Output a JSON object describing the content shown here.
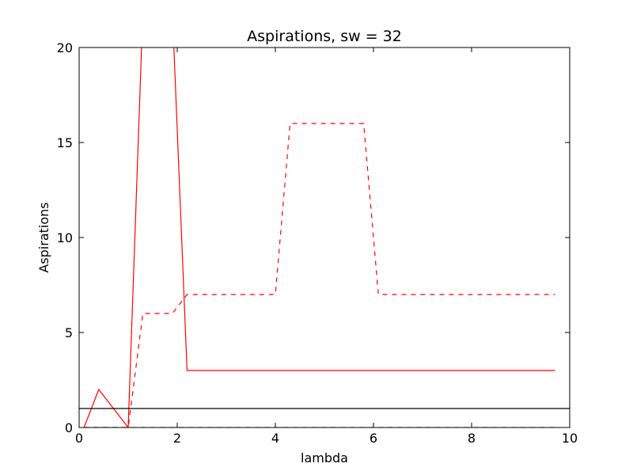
{
  "chart_data": {
    "type": "line",
    "title": "Aspirations, sw = 32",
    "xlabel": "lambda",
    "ylabel": "Aspirations",
    "xlim": [
      0,
      10
    ],
    "ylim": [
      0,
      20
    ],
    "x_ticks": [
      0,
      2,
      4,
      6,
      8,
      10
    ],
    "y_ticks": [
      0,
      5,
      10,
      15,
      20
    ],
    "grid": false,
    "series": [
      {
        "style": "solid",
        "color": "#ff0000",
        "x": [
          0.1,
          0.4,
          1.0,
          1.3,
          1.9,
          2.2,
          9.7
        ],
        "y": [
          0,
          2,
          0,
          22,
          22,
          3,
          3
        ]
      },
      {
        "style": "dashed",
        "color": "#ff0000",
        "x": [
          0.1,
          1.0,
          1.3,
          1.9,
          2.2,
          4.0,
          4.3,
          5.8,
          6.1,
          9.7
        ],
        "y": [
          0,
          0,
          6,
          6,
          7,
          7,
          16,
          16,
          7,
          7
        ]
      },
      {
        "style": "dashed",
        "color": "#000000",
        "x": [
          0.1,
          9.7
        ],
        "y": [
          0,
          0
        ]
      },
      {
        "style": "solid",
        "color": "#000000",
        "x": [
          0,
          10
        ],
        "y": [
          1,
          1
        ]
      }
    ]
  }
}
